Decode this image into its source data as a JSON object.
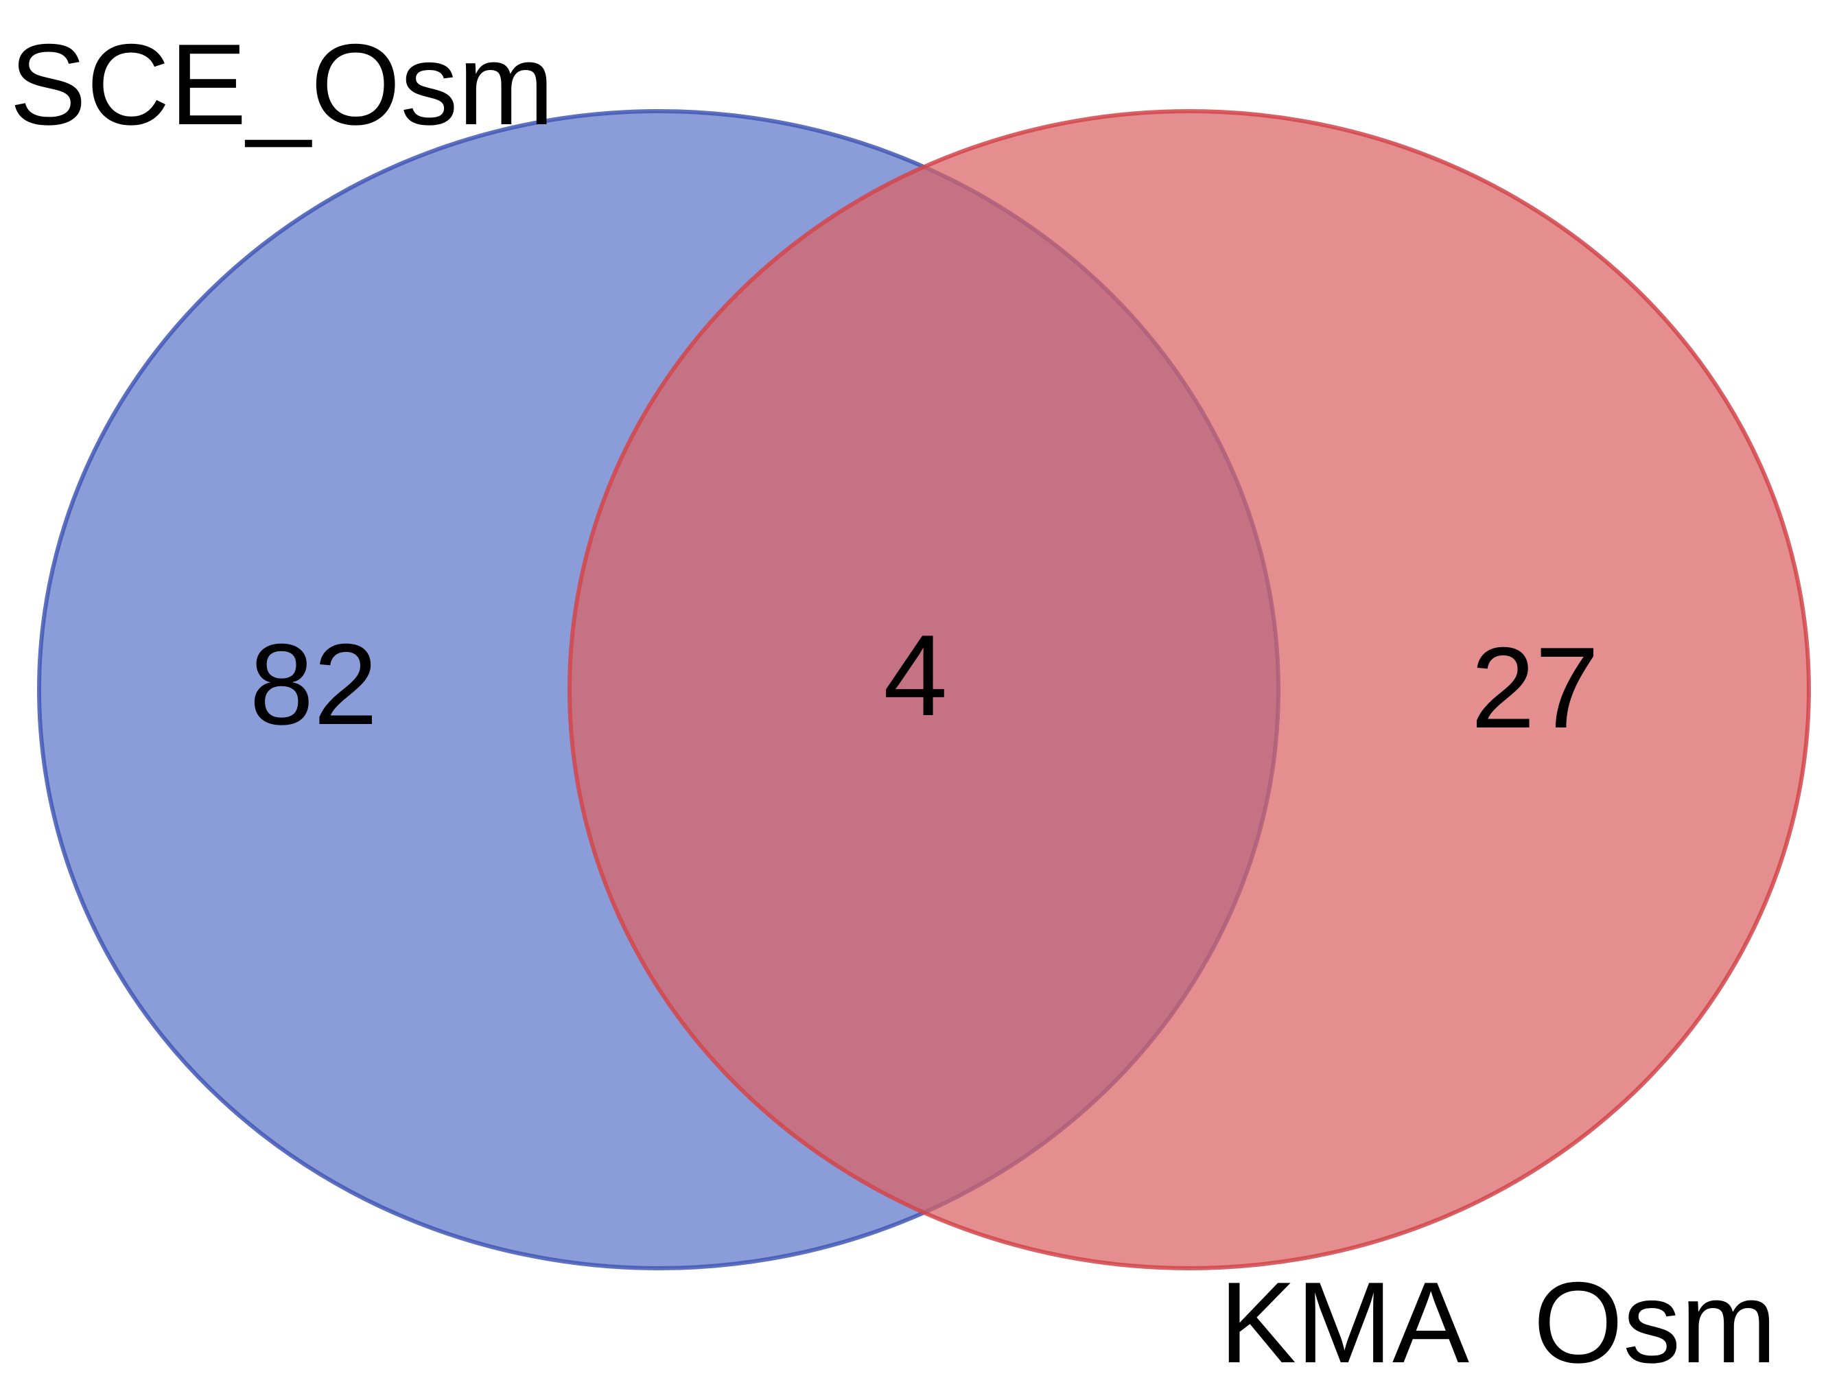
{
  "diagram": {
    "type": "venn",
    "sets": [
      {
        "label": "SCE_Osm",
        "only_count": "82",
        "color": "#5a74c8"
      },
      {
        "label": "KMA_Osm",
        "only_count": "27",
        "color": "#d9585a"
      }
    ],
    "intersection_count": "4",
    "intersection_color": "#a95b77"
  }
}
